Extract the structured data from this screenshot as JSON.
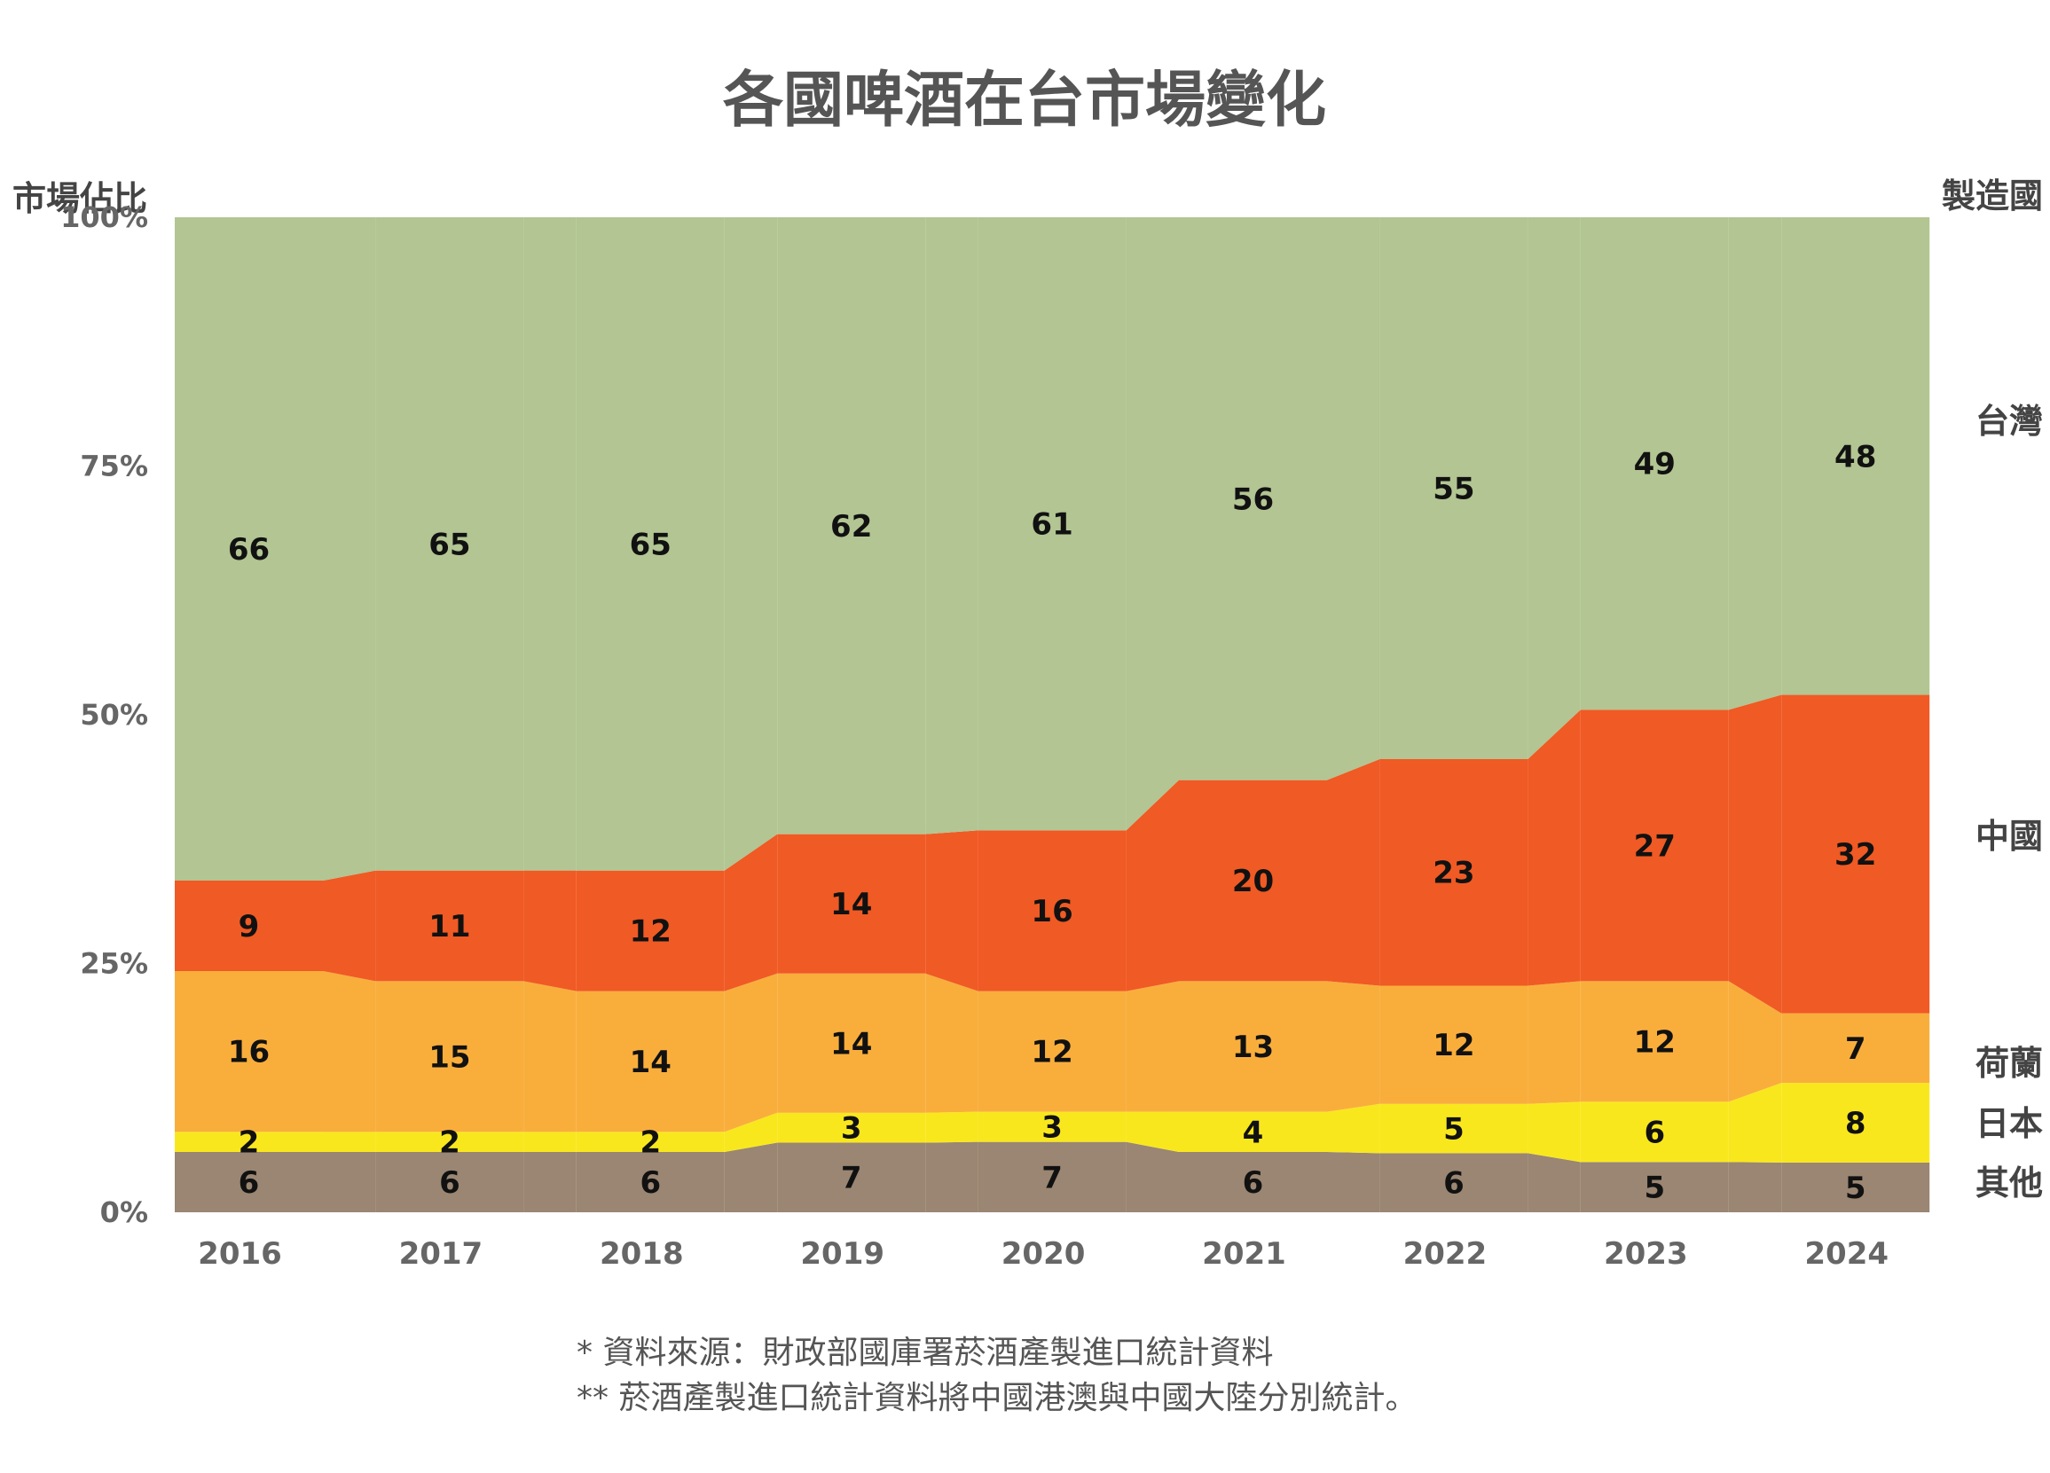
{
  "chart_data": {
    "type": "bar",
    "stacked": true,
    "title": "各國啤酒在台市場變化",
    "ylabel": "市場佔比",
    "legend_title": "製造國",
    "ylim": [
      0,
      100
    ],
    "yticks": [
      "0%",
      "25%",
      "50%",
      "75%",
      "100%"
    ],
    "categories": [
      "2016",
      "2017",
      "2018",
      "2019",
      "2020",
      "2021",
      "2022",
      "2023",
      "2024"
    ],
    "series": [
      {
        "name": "其他",
        "color": "#9a8672",
        "values": [
          6,
          6,
          6,
          7,
          7,
          6,
          6,
          5,
          5
        ]
      },
      {
        "name": "日本",
        "color": "#f9e71e",
        "values": [
          2,
          2,
          2,
          3,
          3,
          4,
          5,
          6,
          8
        ]
      },
      {
        "name": "荷蘭",
        "color": "#f9ae3c",
        "values": [
          16,
          15,
          14,
          14,
          12,
          13,
          12,
          12,
          7
        ]
      },
      {
        "name": "中國",
        "color": "#f05a24",
        "values": [
          9,
          11,
          12,
          14,
          16,
          20,
          23,
          27,
          32
        ]
      },
      {
        "name": "台灣",
        "color": "#b2c592",
        "values": [
          66,
          65,
          65,
          62,
          61,
          56,
          55,
          49,
          48
        ]
      }
    ],
    "legend_placement": "right",
    "grid": false
  },
  "notes": [
    "* 資料來源：財政部國庫署菸酒產製進口統計資料",
    "** 菸酒產製進口統計資料將中國港澳與中國大陸分別統計。"
  ]
}
